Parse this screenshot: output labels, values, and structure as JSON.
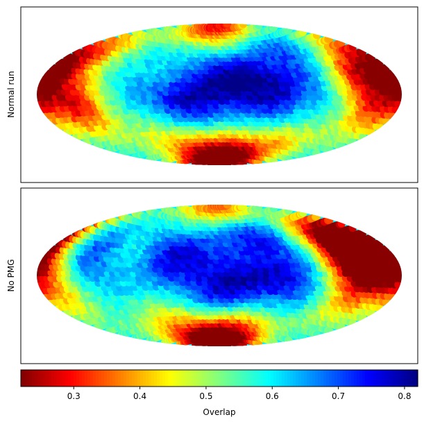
{
  "chart_data": {
    "type": "heatmap",
    "projection": "hammer",
    "colormap": "jet_r",
    "grid": false,
    "panels": [
      {
        "ylabel": "Normal run",
        "hotspots": [
          {
            "lon": 0,
            "lat": 88,
            "value": 0.33
          },
          {
            "lon": 0,
            "lat": -88,
            "value": 0.36
          },
          {
            "lon": -172,
            "lat": 8,
            "value": 0.36
          },
          {
            "lon": -130,
            "lat": -12,
            "value": 0.34
          },
          {
            "lon": 135,
            "lat": 22,
            "value": 0.37
          },
          {
            "lon": 150,
            "lat": -15,
            "value": 0.43
          },
          {
            "lon": 10,
            "lat": -60,
            "value": 0.47
          },
          {
            "lon": -60,
            "lat": -50,
            "value": 0.48
          },
          {
            "lon": 80,
            "lat": -55,
            "value": 0.46
          },
          {
            "lon": -150,
            "lat": 40,
            "value": 0.48
          },
          {
            "lon": -120,
            "lat": 30,
            "value": 0.53
          },
          {
            "lon": 175,
            "lat": 25,
            "value": 0.5
          },
          {
            "lon": -40,
            "lat": 25,
            "value": 0.6
          }
        ],
        "coldspots": [
          {
            "lon": 10,
            "lat": 20,
            "value": 0.8
          },
          {
            "lon": -30,
            "lat": -5,
            "value": 0.79
          },
          {
            "lon": 50,
            "lat": 5,
            "value": 0.78
          },
          {
            "lon": -120,
            "lat": 25,
            "value": 0.74
          },
          {
            "lon": 100,
            "lat": 50,
            "value": 0.76
          }
        ]
      },
      {
        "ylabel": "No PMG",
        "hotspots": [
          {
            "lon": 150,
            "lat": 30,
            "value": 0.24
          },
          {
            "lon": 125,
            "lat": 20,
            "value": 0.3
          },
          {
            "lon": 165,
            "lat": 10,
            "value": 0.34
          },
          {
            "lon": 0,
            "lat": -87,
            "value": 0.33
          },
          {
            "lon": 0,
            "lat": 88,
            "value": 0.36
          },
          {
            "lon": 30,
            "lat": -60,
            "value": 0.42
          },
          {
            "lon": -60,
            "lat": -55,
            "value": 0.44
          },
          {
            "lon": -165,
            "lat": 10,
            "value": 0.46
          },
          {
            "lon": -150,
            "lat": -20,
            "value": 0.5
          },
          {
            "lon": 130,
            "lat": -25,
            "value": 0.47
          },
          {
            "lon": -90,
            "lat": 35,
            "value": 0.55
          }
        ],
        "coldspots": [
          {
            "lon": -130,
            "lat": 25,
            "value": 0.78
          },
          {
            "lon": 10,
            "lat": -10,
            "value": 0.8
          },
          {
            "lon": -40,
            "lat": 25,
            "value": 0.79
          },
          {
            "lon": 60,
            "lat": 0,
            "value": 0.76
          },
          {
            "lon": 40,
            "lat": 55,
            "value": 0.77
          }
        ]
      }
    ],
    "colorbar": {
      "label": "Overlap",
      "range": [
        0.22,
        0.82
      ],
      "ticks": [
        0.3,
        0.4,
        0.5,
        0.6,
        0.7,
        0.8
      ],
      "tick_labels": [
        "0.3",
        "0.4",
        "0.5",
        "0.6",
        "0.7",
        "0.8"
      ]
    }
  }
}
